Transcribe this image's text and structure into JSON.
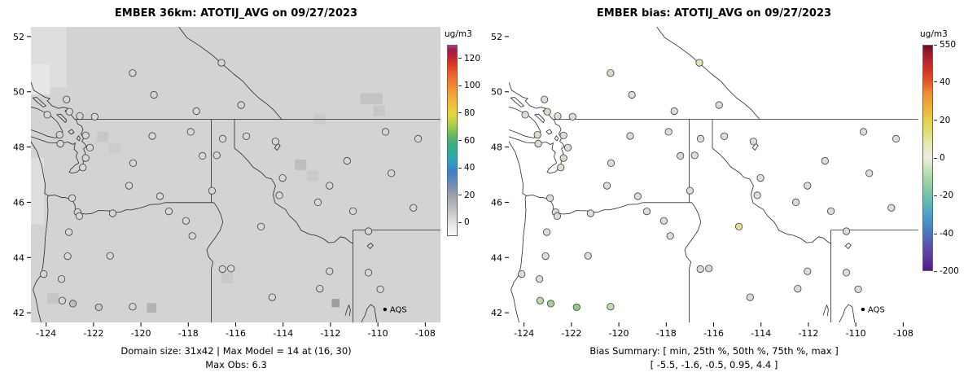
{
  "chart_data": [
    {
      "type": "scatter",
      "subtype": "gridded-model-map",
      "title": "EMBER 36km: ATOTIJ_AVG on 09/27/2023",
      "caption": [
        "Domain size: 31x42 | Max Model = 14 at (16, 30)",
        "Max Obs: 6.3"
      ],
      "max_model": 14,
      "max_model_cell": [
        16,
        30
      ],
      "max_obs": 6.3,
      "domain_size": "31x42",
      "xlim": [
        -124.64,
        -107.36
      ],
      "ylim": [
        41.65,
        52.35
      ],
      "x_ticks": [
        -124,
        -122,
        -120,
        -118,
        -116,
        -114,
        -112,
        -110,
        -108
      ],
      "y_ticks": [
        42,
        44,
        46,
        48,
        50,
        52
      ],
      "grid": false,
      "legend": {
        "label": "AQS",
        "lon": -109.7,
        "lat": 42.12,
        "marker_color": "#000000"
      },
      "stations_fill": "#d6d6d6",
      "field": {
        "base_color": "#d3d3d3",
        "cells": [
          {
            "lon": -124.64,
            "lat": 52.35,
            "w": 1.5,
            "h": 2.2,
            "color": "#dedede"
          },
          {
            "lon": -124.64,
            "lat": 51.0,
            "w": 0.8,
            "h": 1.1,
            "color": "#e7e7e7"
          },
          {
            "lon": -124.64,
            "lat": 47.6,
            "w": 0.55,
            "h": 2.4,
            "color": "#dedede"
          },
          {
            "lon": -110.75,
            "lat": 49.95,
            "w": 0.95,
            "h": 0.4,
            "color": "#c4c4c4"
          },
          {
            "lon": -110.2,
            "lat": 49.5,
            "w": 0.5,
            "h": 0.38,
            "color": "#c7c7c7"
          },
          {
            "lon": -113.5,
            "lat": 47.55,
            "w": 0.48,
            "h": 0.38,
            "color": "#bdbdbd"
          },
          {
            "lon": -113.0,
            "lat": 47.15,
            "w": 0.48,
            "h": 0.38,
            "color": "#cbcbcb"
          },
          {
            "lon": -121.85,
            "lat": 48.55,
            "w": 0.48,
            "h": 0.38,
            "color": "#c8c8c8"
          },
          {
            "lon": -121.35,
            "lat": 48.15,
            "w": 0.48,
            "h": 0.38,
            "color": "#cccccc"
          },
          {
            "lon": -112.7,
            "lat": 49.2,
            "w": 0.48,
            "h": 0.38,
            "color": "#cbcbcb"
          },
          {
            "lon": -116.6,
            "lat": 43.45,
            "w": 0.48,
            "h": 0.38,
            "color": "#c9c9c9"
          },
          {
            "lon": -119.75,
            "lat": 42.35,
            "w": 0.4,
            "h": 0.35,
            "color": "#b3b3b3"
          },
          {
            "lon": -111.95,
            "lat": 42.5,
            "w": 0.33,
            "h": 0.3,
            "color": "#9e9e9e"
          },
          {
            "lon": -123.95,
            "lat": 42.7,
            "w": 0.48,
            "h": 0.38,
            "color": "#c6c6c6"
          }
        ]
      },
      "colorbar": {
        "title": "ug/m3",
        "ticks": [
          {
            "label": "0",
            "f": 0.071
          },
          {
            "label": "20",
            "f": 0.214
          },
          {
            "label": "40",
            "f": 0.357
          },
          {
            "label": "60",
            "f": 0.5
          },
          {
            "label": "80",
            "f": 0.643
          },
          {
            "label": "100",
            "f": 0.786
          },
          {
            "label": "120",
            "f": 0.929
          }
        ],
        "stops": [
          {
            "c": "#fafafa",
            "p": 0
          },
          {
            "c": "#e8e8e8",
            "p": 5
          },
          {
            "c": "#d6d6d6",
            "p": 9
          },
          {
            "c": "#bfbfbf",
            "p": 14
          },
          {
            "c": "#a7aab0",
            "p": 19
          },
          {
            "c": "#8795ac",
            "p": 24
          },
          {
            "c": "#5e87c0",
            "p": 29
          },
          {
            "c": "#3c80c4",
            "p": 34
          },
          {
            "c": "#2f9cc6",
            "p": 38
          },
          {
            "c": "#31aaa8",
            "p": 42
          },
          {
            "c": "#3aad85",
            "p": 47
          },
          {
            "c": "#52b368",
            "p": 51
          },
          {
            "c": "#84c156",
            "p": 55
          },
          {
            "c": "#b5cf4a",
            "p": 59
          },
          {
            "c": "#ddd83f",
            "p": 63
          },
          {
            "c": "#eccb3d",
            "p": 67
          },
          {
            "c": "#f1af38",
            "p": 72
          },
          {
            "c": "#f29434",
            "p": 77
          },
          {
            "c": "#ee7630",
            "p": 82
          },
          {
            "c": "#e45429",
            "p": 87
          },
          {
            "c": "#d63226",
            "p": 91
          },
          {
            "c": "#b51f35",
            "p": 95
          },
          {
            "c": "#991c4e",
            "p": 98
          },
          {
            "c": "#aa3d86",
            "p": 100
          }
        ]
      }
    },
    {
      "type": "scatter",
      "subtype": "bias-map",
      "title": "EMBER bias: ATOTIJ_AVG on 09/27/2023",
      "caption": [
        "Bias Summary: [ min, 25th %, 50th %, 75th %, max ]",
        "[ -5.5,  -1.6,  -0.5,  0.95,  4.4 ]"
      ],
      "bias_summary": {
        "min": -5.5,
        "p25": -1.6,
        "p50": -0.5,
        "p75": 0.95,
        "max": 4.4
      },
      "xlim": [
        -124.64,
        -107.36
      ],
      "ylim": [
        41.65,
        52.35
      ],
      "x_ticks": [
        -124,
        -122,
        -120,
        -118,
        -116,
        -114,
        -112,
        -110,
        -108
      ],
      "y_ticks": [
        42,
        44,
        46,
        48,
        50,
        52
      ],
      "grid": false,
      "legend": {
        "label": "AQS",
        "lon": -109.7,
        "lat": 42.12,
        "marker_color": "#000000"
      },
      "stations_default_fill": "#dbded7",
      "colorbar": {
        "title": "ug/m3",
        "ticks": [
          {
            "label": "550",
            "f": 1.0
          },
          {
            "label": "40",
            "f": 0.835
          },
          {
            "label": "20",
            "f": 0.667
          },
          {
            "label": "0",
            "f": 0.5
          },
          {
            "label": "-20",
            "f": 0.333
          },
          {
            "label": "-40",
            "f": 0.165
          },
          {
            "label": "-200",
            "f": 0.0
          }
        ],
        "stops": [
          {
            "c": "#4b1e86",
            "p": 0
          },
          {
            "c": "#5c3a9e",
            "p": 6
          },
          {
            "c": "#5b55b0",
            "p": 12
          },
          {
            "c": "#4a78c0",
            "p": 17
          },
          {
            "c": "#4e9cc6",
            "p": 24
          },
          {
            "c": "#5fb9b4",
            "p": 30
          },
          {
            "c": "#8fcba4",
            "p": 37
          },
          {
            "c": "#bedfb4",
            "p": 44
          },
          {
            "c": "#ecefe4",
            "p": 50
          },
          {
            "c": "#e7e9b4",
            "p": 56
          },
          {
            "c": "#e2dc72",
            "p": 62
          },
          {
            "c": "#e7cf48",
            "p": 67
          },
          {
            "c": "#eeac3c",
            "p": 73
          },
          {
            "c": "#ef8b33",
            "p": 79
          },
          {
            "c": "#e5602b",
            "p": 83
          },
          {
            "c": "#d63b26",
            "p": 88
          },
          {
            "c": "#bb2430",
            "p": 93
          },
          {
            "c": "#951a28",
            "p": 97
          },
          {
            "c": "#6e0e1c",
            "p": 100
          }
        ]
      }
    }
  ],
  "stations": [
    {
      "lon": -123.02,
      "lat": 49.28,
      "bias_color": "#cde0c4"
    },
    {
      "lon": -122.58,
      "lat": 49.12
    },
    {
      "lon": -123.14,
      "lat": 49.72
    },
    {
      "lon": -121.95,
      "lat": 49.1
    },
    {
      "lon": -123.43,
      "lat": 48.44,
      "bias_color": "#d6e3cc"
    },
    {
      "lon": -123.95,
      "lat": 49.17
    },
    {
      "lon": -120.35,
      "lat": 50.68,
      "bias_color": "#d4e0c8"
    },
    {
      "lon": -119.45,
      "lat": 49.89
    },
    {
      "lon": -116.6,
      "lat": 51.05,
      "bias_color": "#dfe3ae"
    },
    {
      "lon": -117.66,
      "lat": 49.3
    },
    {
      "lon": -115.77,
      "lat": 49.52
    },
    {
      "lon": -122.33,
      "lat": 47.6,
      "bias_color": "#d2dccc"
    },
    {
      "lon": -122.45,
      "lat": 47.26
    },
    {
      "lon": -122.15,
      "lat": 47.98
    },
    {
      "lon": -122.33,
      "lat": 48.42
    },
    {
      "lon": -123.4,
      "lat": 48.12
    },
    {
      "lon": -122.9,
      "lat": 46.15
    },
    {
      "lon": -122.67,
      "lat": 45.64
    },
    {
      "lon": -120.5,
      "lat": 46.6
    },
    {
      "lon": -119.2,
      "lat": 46.22
    },
    {
      "lon": -120.33,
      "lat": 47.42
    },
    {
      "lon": -119.52,
      "lat": 48.4
    },
    {
      "lon": -117.4,
      "lat": 47.68,
      "bias_color": "#d3dade"
    },
    {
      "lon": -117.9,
      "lat": 48.55
    },
    {
      "lon": -122.6,
      "lat": 45.5
    },
    {
      "lon": -123.04,
      "lat": 44.92
    },
    {
      "lon": -123.09,
      "lat": 44.05
    },
    {
      "lon": -123.35,
      "lat": 43.22
    },
    {
      "lon": -123.32,
      "lat": 42.44,
      "bias_color": "#bcd8aa"
    },
    {
      "lon": -122.87,
      "lat": 42.33,
      "bias_color": "#a5d08f",
      "obs_color": "#bdbdbd"
    },
    {
      "lon": -121.78,
      "lat": 42.2,
      "bias_color": "#93c981",
      "obs_color": "#c6c6c6"
    },
    {
      "lon": -120.35,
      "lat": 42.22,
      "bias_color": "#c5dcb2"
    },
    {
      "lon": -121.3,
      "lat": 44.06
    },
    {
      "lon": -121.19,
      "lat": 45.6
    },
    {
      "lon": -118.82,
      "lat": 45.67
    },
    {
      "lon": -118.1,
      "lat": 45.33
    },
    {
      "lon": -117.83,
      "lat": 44.78
    },
    {
      "lon": -124.1,
      "lat": 43.4
    },
    {
      "lon": -116.2,
      "lat": 43.6,
      "bias_color": "#d3dade"
    },
    {
      "lon": -116.56,
      "lat": 43.58
    },
    {
      "lon": -116.8,
      "lat": 47.7
    },
    {
      "lon": -116.55,
      "lat": 48.3
    },
    {
      "lon": -117.0,
      "lat": 46.42
    },
    {
      "lon": -114.46,
      "lat": 42.56
    },
    {
      "lon": -112.45,
      "lat": 42.87
    },
    {
      "lon": -112.04,
      "lat": 43.5
    },
    {
      "lon": -114.93,
      "lat": 45.12,
      "bias_color": "#e3dc9e"
    },
    {
      "lon": -114.02,
      "lat": 46.88,
      "bias_color": "#d8e0d0"
    },
    {
      "lon": -114.16,
      "lat": 46.25
    },
    {
      "lon": -114.32,
      "lat": 48.2
    },
    {
      "lon": -115.55,
      "lat": 48.39
    },
    {
      "lon": -112.04,
      "lat": 46.6
    },
    {
      "lon": -112.53,
      "lat": 46.0
    },
    {
      "lon": -111.05,
      "lat": 45.68
    },
    {
      "lon": -111.3,
      "lat": 47.5
    },
    {
      "lon": -109.43,
      "lat": 47.05
    },
    {
      "lon": -109.68,
      "lat": 48.55
    },
    {
      "lon": -108.3,
      "lat": 48.3
    },
    {
      "lon": -108.5,
      "lat": 45.8
    },
    {
      "lon": -110.4,
      "lat": 44.95
    },
    {
      "lon": -110.4,
      "lat": 43.45
    },
    {
      "lon": -109.9,
      "lat": 42.85
    }
  ],
  "style": {
    "map_line_color": "#2a2a2a",
    "station_edge_color": "#3c3c3c",
    "axis_color": "#000000"
  }
}
